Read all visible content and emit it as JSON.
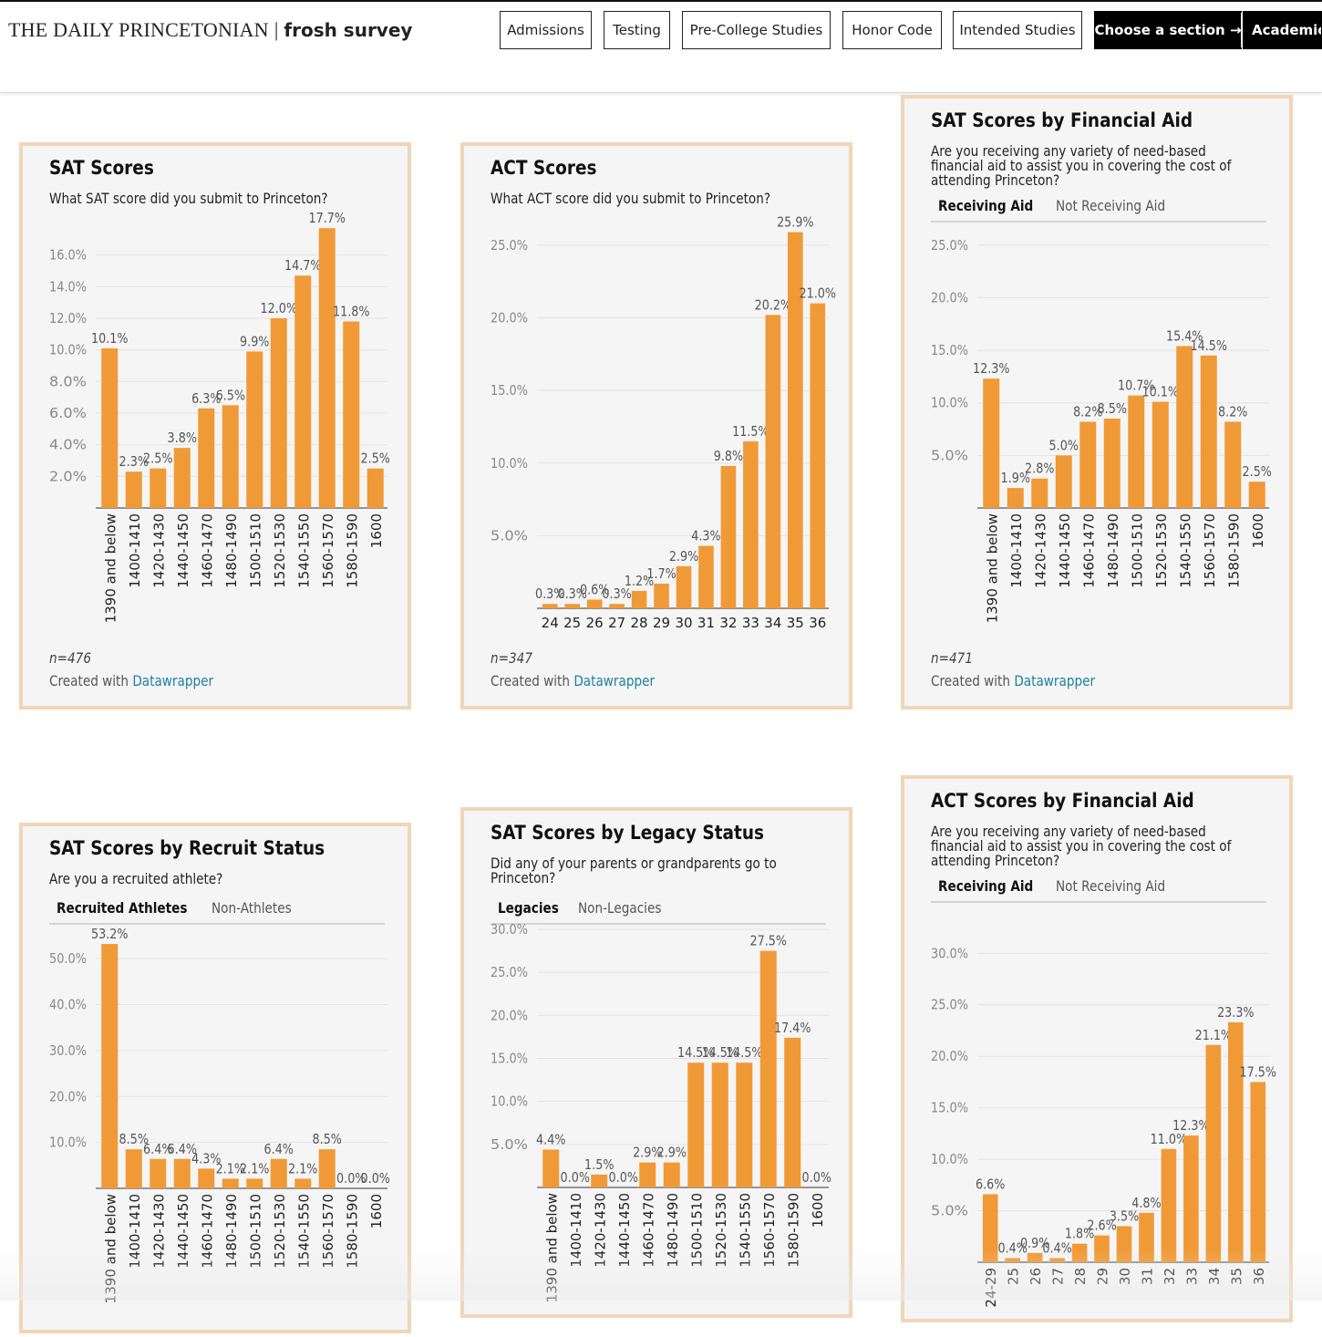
{
  "header": {
    "brand_serif": "THE DAILY PRINCETONIAN",
    "brand_sep": "|",
    "brand_sans": "frosh survey",
    "nav": [
      "Admissions",
      "Testing",
      "Pre-College Studies",
      "Honor Code",
      "Intended Studies"
    ],
    "choose_label": "Choose a section →",
    "academics_label": "Academics"
  },
  "colors": {
    "bar": "#f09a37",
    "card_border": "#f0d6b8",
    "link": "#1d81a2"
  },
  "credit_prefix": "Created with",
  "credit_link": "Datawrapper",
  "chart_data": [
    {
      "type": "bar",
      "title": "SAT Scores",
      "subtitle": "What SAT score did you submit to Princeton?",
      "categories": [
        "1390 and below",
        "1400-1410",
        "1420-1430",
        "1440-1450",
        "1460-1470",
        "1480-1490",
        "1500-1510",
        "1520-1530",
        "1540-1550",
        "1560-1570",
        "1580-1590",
        "1600"
      ],
      "values": [
        10.1,
        2.3,
        2.5,
        3.8,
        6.3,
        6.5,
        9.9,
        12.0,
        14.7,
        17.7,
        11.8,
        2.5
      ],
      "value_labels": [
        "10.1%",
        "2.3%",
        "2.5%",
        "3.8%",
        "6.3%",
        "6.5%",
        "9.9%",
        "12.0%",
        "14.7%",
        "17.7%",
        "11.8%",
        "2.5%"
      ],
      "yticks": [
        2,
        4,
        6,
        8,
        10,
        12,
        14,
        16
      ],
      "ytick_labels": [
        "2.0%",
        "4.0%",
        "6.0%",
        "8.0%",
        "10.0%",
        "12.0%",
        "14.0%",
        "16.0%"
      ],
      "ylim": [
        0,
        18
      ],
      "n": "n=476"
    },
    {
      "type": "bar",
      "title": "ACT Scores",
      "subtitle": "What ACT score did you submit to Princeton?",
      "categories": [
        "24",
        "25",
        "26",
        "27",
        "28",
        "29",
        "30",
        "31",
        "32",
        "33",
        "34",
        "35",
        "36"
      ],
      "values": [
        0.3,
        0.3,
        0.6,
        0.3,
        1.2,
        1.7,
        2.9,
        4.3,
        9.8,
        11.5,
        20.2,
        25.9,
        21.0
      ],
      "value_labels": [
        "0.3%",
        "0.3%",
        "0.6%",
        "0.3%",
        "1.2%",
        "1.7%",
        "2.9%",
        "4.3%",
        "9.8%",
        "11.5%",
        "20.2%",
        "25.9%",
        "21.0%"
      ],
      "yticks": [
        5,
        10,
        15,
        20,
        25
      ],
      "ytick_labels": [
        "5.0%",
        "10.0%",
        "15.0%",
        "20.0%",
        "25.0%"
      ],
      "ylim": [
        0,
        26.5
      ],
      "n": "n=347"
    },
    {
      "type": "bar",
      "title": "SAT Scores by Financial Aid",
      "subtitle": "Are you receiving any variety of need-based financial aid to assist you in covering the cost of attending Princeton?",
      "tabs": [
        "Receiving Aid",
        "Not Receiving Aid"
      ],
      "categories": [
        "1390 and below",
        "1400-1410",
        "1420-1430",
        "1440-1450",
        "1460-1470",
        "1480-1490",
        "1500-1510",
        "1520-1530",
        "1540-1550",
        "1560-1570",
        "1580-1590",
        "1600"
      ],
      "values": [
        12.3,
        1.9,
        2.8,
        5.0,
        8.2,
        8.5,
        10.7,
        10.1,
        15.4,
        14.5,
        8.2,
        2.5
      ],
      "value_labels": [
        "12.3%",
        "1.9%",
        "2.8%",
        "5.0%",
        "8.2%",
        "8.5%",
        "10.7%",
        "10.1%",
        "15.4%",
        "14.5%",
        "8.2%",
        "2.5%"
      ],
      "yticks": [
        5,
        10,
        15,
        20,
        25
      ],
      "ytick_labels": [
        "5.0%",
        "10.0%",
        "15.0%",
        "20.0%",
        "25.0%"
      ],
      "ylim": [
        0,
        25.5
      ],
      "n": "n=471"
    },
    {
      "type": "bar",
      "title": "SAT Scores by Recruit Status",
      "subtitle": "Are you a recruited athlete?",
      "tabs": [
        "Recruited Athletes",
        "Non-Athletes"
      ],
      "categories": [
        "1390 and below",
        "1400-1410",
        "1420-1430",
        "1440-1450",
        "1460-1470",
        "1480-1490",
        "1500-1510",
        "1520-1530",
        "1540-1550",
        "1560-1570",
        "1580-1590",
        "1600"
      ],
      "values": [
        53.2,
        8.5,
        6.4,
        6.4,
        4.3,
        2.1,
        2.1,
        6.4,
        2.1,
        8.5,
        0.0,
        0.0
      ],
      "value_labels": [
        "53.2%",
        "8.5%",
        "6.4%",
        "6.4%",
        "4.3%",
        "2.1%",
        "2.1%",
        "6.4%",
        "2.1%",
        "8.5%",
        "0.0%",
        "0.0%"
      ],
      "yticks": [
        10,
        20,
        30,
        40,
        50
      ],
      "ytick_labels": [
        "10.0%",
        "20.0%",
        "30.0%",
        "40.0%",
        "50.0%"
      ],
      "ylim": [
        0,
        55
      ]
    },
    {
      "type": "bar",
      "title": "SAT Scores by Legacy Status",
      "subtitle": "Did any of your parents or grandparents go to Princeton?",
      "tabs": [
        "Legacies",
        "Non-Legacies"
      ],
      "categories": [
        "1390 and below",
        "1400-1410",
        "1420-1430",
        "1440-1450",
        "1460-1470",
        "1480-1490",
        "1500-1510",
        "1520-1530",
        "1540-1550",
        "1560-1570",
        "1580-1590",
        "1600"
      ],
      "values": [
        4.4,
        0.0,
        1.5,
        0.0,
        2.9,
        2.9,
        14.5,
        14.5,
        14.5,
        27.5,
        17.4,
        0.0
      ],
      "value_labels": [
        "4.4%",
        "0.0%",
        "1.5%",
        "0.0%",
        "2.9%",
        "2.9%",
        "14.5%",
        "14.5%",
        "14.5%",
        "27.5%",
        "17.4%",
        "0.0%"
      ],
      "yticks": [
        5,
        10,
        15,
        20,
        25,
        30
      ],
      "ytick_labels": [
        "5.0%",
        "10.0%",
        "15.0%",
        "20.0%",
        "25.0%",
        "30.0%"
      ],
      "ylim": [
        0,
        30
      ]
    },
    {
      "type": "bar",
      "title": "ACT Scores by Financial Aid",
      "subtitle": "Are you receiving any variety of need-based financial aid to assist you in covering the cost of attending Princeton?",
      "tabs": [
        "Receiving Aid",
        "Not Receiving Aid"
      ],
      "categories": [
        "24-29",
        "25",
        "26",
        "27",
        "28",
        "29",
        "30",
        "31",
        "32",
        "33",
        "34",
        "35",
        "36"
      ],
      "values": [
        6.6,
        0.4,
        0.9,
        0.4,
        1.8,
        2.6,
        3.5,
        4.8,
        11.0,
        12.3,
        21.1,
        23.3,
        17.5
      ],
      "value_labels": [
        "6.6%",
        "0.4%",
        "0.9%",
        "0.4%",
        "1.8%",
        "2.6%",
        "3.5%",
        "4.8%",
        "11.0%",
        "12.3%",
        "21.1%",
        "23.3%",
        "17.5%"
      ],
      "yticks": [
        5,
        10,
        15,
        20,
        25,
        30
      ],
      "ytick_labels": [
        "5.0%",
        "10.0%",
        "15.0%",
        "20.0%",
        "25.0%",
        "30.0%"
      ],
      "ylim": [
        0,
        31
      ]
    }
  ]
}
